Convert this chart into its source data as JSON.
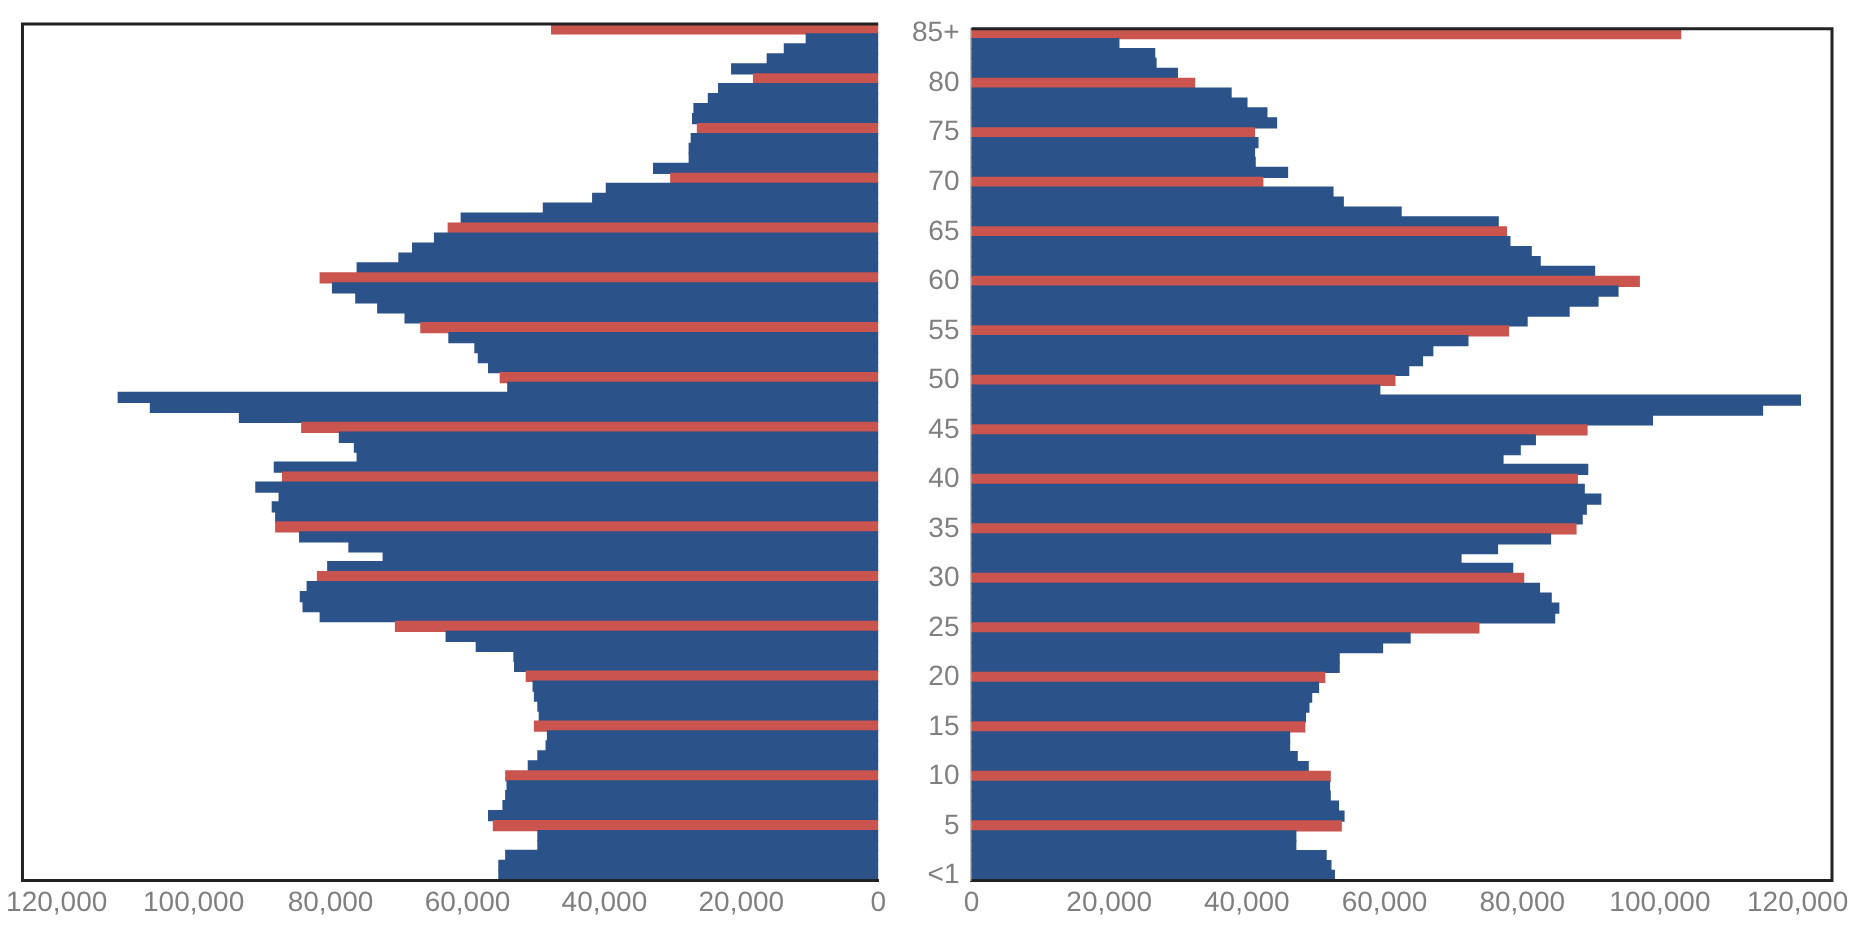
{
  "chart_data": [
    {
      "type": "bar",
      "orientation": "horizontal",
      "tick_labels": "x",
      "xlim": [
        125000,
        0
      ],
      "xticks": [
        {
          "value": 120000,
          "label": "120,000"
        },
        {
          "value": 100000,
          "label": "100,000"
        },
        {
          "value": 80000,
          "label": "80,000"
        },
        {
          "value": 60000,
          "label": "60,000"
        },
        {
          "value": 40000,
          "label": "40,000"
        },
        {
          "value": 20000,
          "label": "20,000"
        },
        {
          "value": 0,
          "label": "0"
        }
      ],
      "categories": [
        null,
        null,
        null,
        null,
        null,
        null,
        null,
        null,
        null,
        null,
        null,
        null,
        null,
        null,
        null,
        null,
        null,
        null,
        null,
        null,
        null,
        null,
        null,
        null,
        null,
        null,
        null,
        null,
        null,
        null,
        null,
        null,
        null,
        null,
        null,
        null,
        null,
        null,
        null,
        null,
        null,
        null,
        null,
        null,
        null,
        null,
        null,
        null,
        null,
        null,
        null,
        null,
        null,
        null,
        null,
        null,
        null,
        null,
        null,
        null,
        null,
        null,
        null,
        null,
        null,
        null,
        null,
        null,
        null,
        null,
        null,
        null,
        null,
        null,
        null,
        null,
        null,
        null,
        null,
        null,
        null,
        null,
        null,
        null,
        null,
        null
      ],
      "values": [
        47700,
        10500,
        13700,
        16200,
        21400,
        18200,
        23300,
        24800,
        26900,
        27100,
        26400,
        27300,
        27600,
        27600,
        32800,
        30300,
        39700,
        41700,
        48900,
        60900,
        62800,
        64800,
        68000,
        70000,
        76100,
        81500,
        79700,
        76300,
        73100,
        69100,
        66800,
        62700,
        58900,
        58400,
        56900,
        55200,
        54100,
        111000,
        106300,
        93300,
        84200,
        78700,
        76500,
        76100,
        88200,
        87000,
        90900,
        87500,
        88500,
        88000,
        88000,
        84500,
        77300,
        72300,
        80400,
        81900,
        83400,
        84400,
        84000,
        81500,
        70500,
        63100,
        58700,
        53200,
        53100,
        51400,
        50400,
        50200,
        49700,
        49500,
        50200,
        48300,
        48500,
        49700,
        51100,
        54400,
        54200,
        54400,
        54800,
        56900,
        56200,
        49700,
        49700,
        54400,
        55400,
        55400
      ],
      "colors": [
        "#c9554e",
        "#2b5289",
        "#2b5289",
        "#2b5289",
        "#2b5289",
        "#c9554e",
        "#2b5289",
        "#2b5289",
        "#2b5289",
        "#2b5289",
        "#c9554e",
        "#2b5289",
        "#2b5289",
        "#2b5289",
        "#2b5289",
        "#c9554e",
        "#2b5289",
        "#2b5289",
        "#2b5289",
        "#2b5289",
        "#c9554e",
        "#2b5289",
        "#2b5289",
        "#2b5289",
        "#2b5289",
        "#c9554e",
        "#2b5289",
        "#2b5289",
        "#2b5289",
        "#2b5289",
        "#c9554e",
        "#2b5289",
        "#2b5289",
        "#2b5289",
        "#2b5289",
        "#c9554e",
        "#2b5289",
        "#2b5289",
        "#2b5289",
        "#2b5289",
        "#c9554e",
        "#2b5289",
        "#2b5289",
        "#2b5289",
        "#2b5289",
        "#c9554e",
        "#2b5289",
        "#2b5289",
        "#2b5289",
        "#2b5289",
        "#c9554e",
        "#2b5289",
        "#2b5289",
        "#2b5289",
        "#2b5289",
        "#c9554e",
        "#2b5289",
        "#2b5289",
        "#2b5289",
        "#2b5289",
        "#c9554e",
        "#2b5289",
        "#2b5289",
        "#2b5289",
        "#2b5289",
        "#c9554e",
        "#2b5289",
        "#2b5289",
        "#2b5289",
        "#2b5289",
        "#c9554e",
        "#2b5289",
        "#2b5289",
        "#2b5289",
        "#2b5289",
        "#c9554e",
        "#2b5289",
        "#2b5289",
        "#2b5289",
        "#2b5289",
        "#c9554e",
        "#2b5289",
        "#2b5289",
        "#2b5289",
        "#2b5289",
        "#2b5289"
      ]
    },
    {
      "type": "bar",
      "orientation": "horizontal",
      "xlim": [
        0,
        125000
      ],
      "xticks": [
        {
          "value": 0,
          "label": "0"
        },
        {
          "value": 20000,
          "label": "20,000"
        },
        {
          "value": 40000,
          "label": "40,000"
        },
        {
          "value": 60000,
          "label": "60,000"
        },
        {
          "value": 80000,
          "label": "80,000"
        },
        {
          "value": 100000,
          "label": "100,000"
        },
        {
          "value": 120000,
          "label": "120,000"
        }
      ],
      "categories": [
        "85+",
        null,
        null,
        null,
        null,
        "80",
        null,
        null,
        null,
        null,
        "75",
        null,
        null,
        null,
        null,
        "70",
        null,
        null,
        null,
        null,
        "65",
        null,
        null,
        null,
        null,
        "60",
        null,
        null,
        null,
        null,
        "55",
        null,
        null,
        null,
        null,
        "50",
        null,
        null,
        null,
        null,
        "45",
        null,
        null,
        null,
        null,
        "40",
        null,
        null,
        null,
        null,
        "35",
        null,
        null,
        null,
        null,
        "30",
        null,
        null,
        null,
        null,
        "25",
        null,
        null,
        null,
        null,
        "20",
        null,
        null,
        null,
        null,
        "15",
        null,
        null,
        null,
        null,
        "10",
        null,
        null,
        null,
        null,
        "5",
        null,
        null,
        null,
        null,
        "<1"
      ],
      "values": [
        103000,
        21400,
        26600,
        26800,
        29900,
        32400,
        37700,
        40000,
        42900,
        44300,
        41100,
        41600,
        41100,
        41200,
        45900,
        42300,
        52500,
        54000,
        62400,
        76500,
        77700,
        78200,
        81300,
        82600,
        90500,
        97000,
        93900,
        91000,
        86800,
        80700,
        78000,
        72100,
        67000,
        65500,
        63500,
        61500,
        59300,
        120400,
        114900,
        98900,
        89400,
        81900,
        79700,
        77200,
        89500,
        88000,
        89000,
        91400,
        89300,
        88700,
        87800,
        84100,
        76400,
        71100,
        78600,
        80200,
        82500,
        84200,
        85300,
        84700,
        73700,
        63700,
        59700,
        53400,
        53400,
        51300,
        50400,
        49400,
        49000,
        48500,
        48400,
        46200,
        46200,
        47300,
        48900,
        52100,
        52000,
        52100,
        53300,
        54100,
        53700,
        47100,
        47100,
        51500,
        52200,
        52700
      ],
      "colors": [
        "#c9554e",
        "#2b5289",
        "#2b5289",
        "#2b5289",
        "#2b5289",
        "#c9554e",
        "#2b5289",
        "#2b5289",
        "#2b5289",
        "#2b5289",
        "#c9554e",
        "#2b5289",
        "#2b5289",
        "#2b5289",
        "#2b5289",
        "#c9554e",
        "#2b5289",
        "#2b5289",
        "#2b5289",
        "#2b5289",
        "#c9554e",
        "#2b5289",
        "#2b5289",
        "#2b5289",
        "#2b5289",
        "#c9554e",
        "#2b5289",
        "#2b5289",
        "#2b5289",
        "#2b5289",
        "#c9554e",
        "#2b5289",
        "#2b5289",
        "#2b5289",
        "#2b5289",
        "#c9554e",
        "#2b5289",
        "#2b5289",
        "#2b5289",
        "#2b5289",
        "#c9554e",
        "#2b5289",
        "#2b5289",
        "#2b5289",
        "#2b5289",
        "#c9554e",
        "#2b5289",
        "#2b5289",
        "#2b5289",
        "#2b5289",
        "#c9554e",
        "#2b5289",
        "#2b5289",
        "#2b5289",
        "#2b5289",
        "#c9554e",
        "#2b5289",
        "#2b5289",
        "#2b5289",
        "#2b5289",
        "#c9554e",
        "#2b5289",
        "#2b5289",
        "#2b5289",
        "#2b5289",
        "#c9554e",
        "#2b5289",
        "#2b5289",
        "#2b5289",
        "#2b5289",
        "#c9554e",
        "#2b5289",
        "#2b5289",
        "#2b5289",
        "#2b5289",
        "#c9554e",
        "#2b5289",
        "#2b5289",
        "#2b5289",
        "#2b5289",
        "#c9554e",
        "#2b5289",
        "#2b5289",
        "#2b5289",
        "#2b5289",
        "#2b5289"
      ]
    }
  ]
}
